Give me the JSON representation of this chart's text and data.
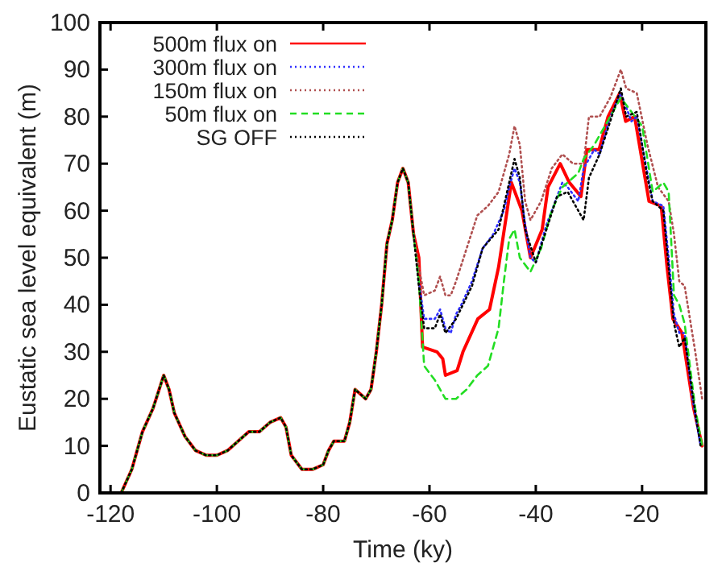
{
  "chart_data": {
    "type": "line",
    "xlabel": "Time (ky)",
    "ylabel": "Eustatic sea level equivalent (m)",
    "xlim": [
      -122,
      -8
    ],
    "ylim": [
      0,
      100
    ],
    "xticks": [
      -120,
      -100,
      -80,
      -60,
      -40,
      -20
    ],
    "yticks": [
      0,
      10,
      20,
      30,
      40,
      50,
      60,
      70,
      80,
      90,
      100
    ],
    "grid": false,
    "legend": "top left",
    "marker": "none",
    "series": [
      {
        "name": "500m flux on",
        "color": "#ff0000",
        "line_style": "solid",
        "x": [
          -118,
          -116,
          -114,
          -112,
          -110,
          -109,
          -108,
          -106,
          -104,
          -102,
          -100,
          -98,
          -96,
          -94,
          -92,
          -90,
          -88,
          -87,
          -86,
          -84,
          -82,
          -80,
          -79,
          -78,
          -76,
          -75,
          -74,
          -73,
          -72,
          -71,
          -70,
          -69,
          -68,
          -67,
          -66,
          -65,
          -64,
          -63,
          -62,
          -61.3,
          -58.6,
          -57.5,
          -57,
          -54.8,
          -53.7,
          -50.9,
          -48.7,
          -47,
          -44.6,
          -42.6,
          -41,
          -38.8,
          -37.7,
          -35.4,
          -33.7,
          -31.5,
          -30.4,
          -28.1,
          -26.4,
          -24.2,
          -23.1,
          -21.4,
          -18.7,
          -16.4,
          -15.3,
          -14.2,
          -12.5,
          -10.3,
          -8.7
        ],
        "values": [
          0,
          5,
          13,
          18,
          25,
          22,
          17,
          12,
          9,
          8,
          8,
          9,
          11,
          13,
          13,
          15,
          16,
          14,
          8,
          5,
          5,
          6,
          9,
          11,
          11,
          15,
          22,
          21,
          20,
          22,
          30,
          40,
          53,
          58,
          66,
          69,
          66,
          55,
          50,
          31,
          30,
          28.5,
          25,
          26,
          30,
          37,
          39,
          48,
          66,
          60,
          50,
          56,
          65,
          70,
          66,
          63,
          73,
          73,
          80,
          85,
          79,
          80,
          62,
          61,
          48,
          37,
          34,
          18,
          10
        ]
      },
      {
        "name": "300m flux on",
        "color": "#3030ff",
        "line_style": "dotted",
        "x": [
          -62,
          -61,
          -59,
          -58,
          -57,
          -56,
          -55,
          -54,
          -52,
          -50,
          -48,
          -46,
          -45,
          -44,
          -43,
          -42,
          -41,
          -40,
          -38,
          -36,
          -35,
          -34,
          -32,
          -31,
          -29,
          -28,
          -26,
          -24,
          -23,
          -22,
          -21,
          -19,
          -18,
          -16,
          -15,
          -14,
          -13,
          -12,
          -10.5,
          -9
        ],
        "values": [
          45,
          37,
          37,
          39,
          35,
          34,
          38,
          40,
          45,
          52,
          55,
          60,
          65,
          69,
          66,
          57,
          50,
          49,
          57,
          63,
          66,
          65,
          62,
          69,
          73,
          72,
          80,
          85,
          82,
          79,
          80,
          68,
          62,
          61,
          50,
          38,
          34,
          34,
          20,
          10
        ]
      },
      {
        "name": "150m flux on",
        "color": "#b05050",
        "line_style": "dotted",
        "x": [
          -63,
          -62,
          -61,
          -59,
          -58,
          -57,
          -56,
          -55,
          -53,
          -51,
          -49,
          -47,
          -45,
          -44,
          -43,
          -42,
          -41,
          -39,
          -37,
          -35,
          -33,
          -31,
          -30,
          -28,
          -26,
          -24,
          -23,
          -21,
          -19,
          -17,
          -15,
          -14,
          -13,
          -12,
          -10,
          -8.7
        ],
        "values": [
          55,
          48,
          42,
          43,
          46,
          42,
          42,
          45,
          52,
          59,
          61,
          64,
          72,
          78,
          74,
          62,
          58,
          62,
          69,
          72,
          70,
          70,
          80,
          80,
          84,
          90,
          86,
          85,
          74,
          65,
          62,
          55,
          45,
          44,
          30,
          20
        ]
      },
      {
        "name": "50m flux on",
        "color": "#22dd22",
        "line_style": "dashed",
        "x": [
          -118,
          -116,
          -114,
          -112,
          -110,
          -109,
          -108,
          -106,
          -104,
          -102,
          -100,
          -98,
          -96,
          -94,
          -92,
          -90,
          -88,
          -87,
          -86,
          -84,
          -82,
          -80,
          -79,
          -78,
          -76,
          -75,
          -74,
          -73,
          -72,
          -71,
          -70,
          -69,
          -68,
          -67,
          -66,
          -65,
          -64,
          -63,
          -62,
          -61,
          -59,
          -57,
          -55,
          -53,
          -51,
          -49,
          -47,
          -46,
          -45,
          -44,
          -43,
          -41,
          -39,
          -37,
          -35,
          -34,
          -32,
          -31,
          -29,
          -27,
          -25,
          -24,
          -22,
          -20,
          -18,
          -16,
          -15,
          -14,
          -13,
          -12,
          -10,
          -8.7
        ],
        "values": [
          0,
          5,
          13,
          18,
          25,
          22,
          17,
          12,
          9,
          8,
          8,
          9,
          11,
          13,
          13,
          15,
          16,
          14,
          8,
          5,
          5,
          6,
          9,
          11,
          11,
          15,
          22,
          21,
          20,
          22,
          30,
          40,
          53,
          58,
          66,
          69,
          66,
          55,
          45,
          27,
          24,
          20,
          20,
          22,
          25,
          27,
          35,
          45,
          54,
          56,
          50,
          47,
          52,
          60,
          65,
          66,
          68,
          71,
          74,
          78,
          82,
          84,
          81,
          78,
          64,
          66,
          64,
          42,
          40,
          36,
          18,
          10
        ]
      },
      {
        "name": "SG OFF",
        "color": "#000000",
        "line_style": "dotted",
        "x": [
          -118,
          -116,
          -114,
          -112,
          -110,
          -109,
          -108,
          -106,
          -104,
          -102,
          -100,
          -98,
          -96,
          -94,
          -92,
          -90,
          -88,
          -87,
          -86,
          -84,
          -82,
          -80,
          -79,
          -78,
          -76,
          -75,
          -74,
          -73,
          -72,
          -71,
          -70,
          -69,
          -68,
          -67,
          -66,
          -65,
          -64,
          -63,
          -62,
          -61,
          -59,
          -58,
          -57,
          -55,
          -52,
          -50,
          -47,
          -45,
          -44,
          -43,
          -42,
          -40,
          -38,
          -36,
          -34,
          -32,
          -31,
          -30,
          -28,
          -26,
          -24,
          -23,
          -21,
          -19,
          -18,
          -16,
          -15,
          -14,
          -13,
          -12,
          -10,
          -9
        ],
        "values": [
          0,
          5,
          13,
          18,
          25,
          22,
          17,
          12,
          9,
          8,
          8,
          9,
          11,
          13,
          13,
          15,
          16,
          14,
          8,
          5,
          5,
          6,
          9,
          11,
          11,
          15,
          22,
          21,
          20,
          22,
          30,
          40,
          53,
          58,
          66,
          69,
          66,
          55,
          44,
          35,
          35,
          38,
          34,
          37,
          44,
          52,
          56,
          66,
          71,
          67,
          56,
          49,
          56,
          63,
          64,
          60,
          58,
          67,
          72,
          79,
          86,
          80,
          81,
          67,
          62,
          60,
          48,
          36,
          31,
          33,
          17,
          10
        ]
      }
    ]
  }
}
